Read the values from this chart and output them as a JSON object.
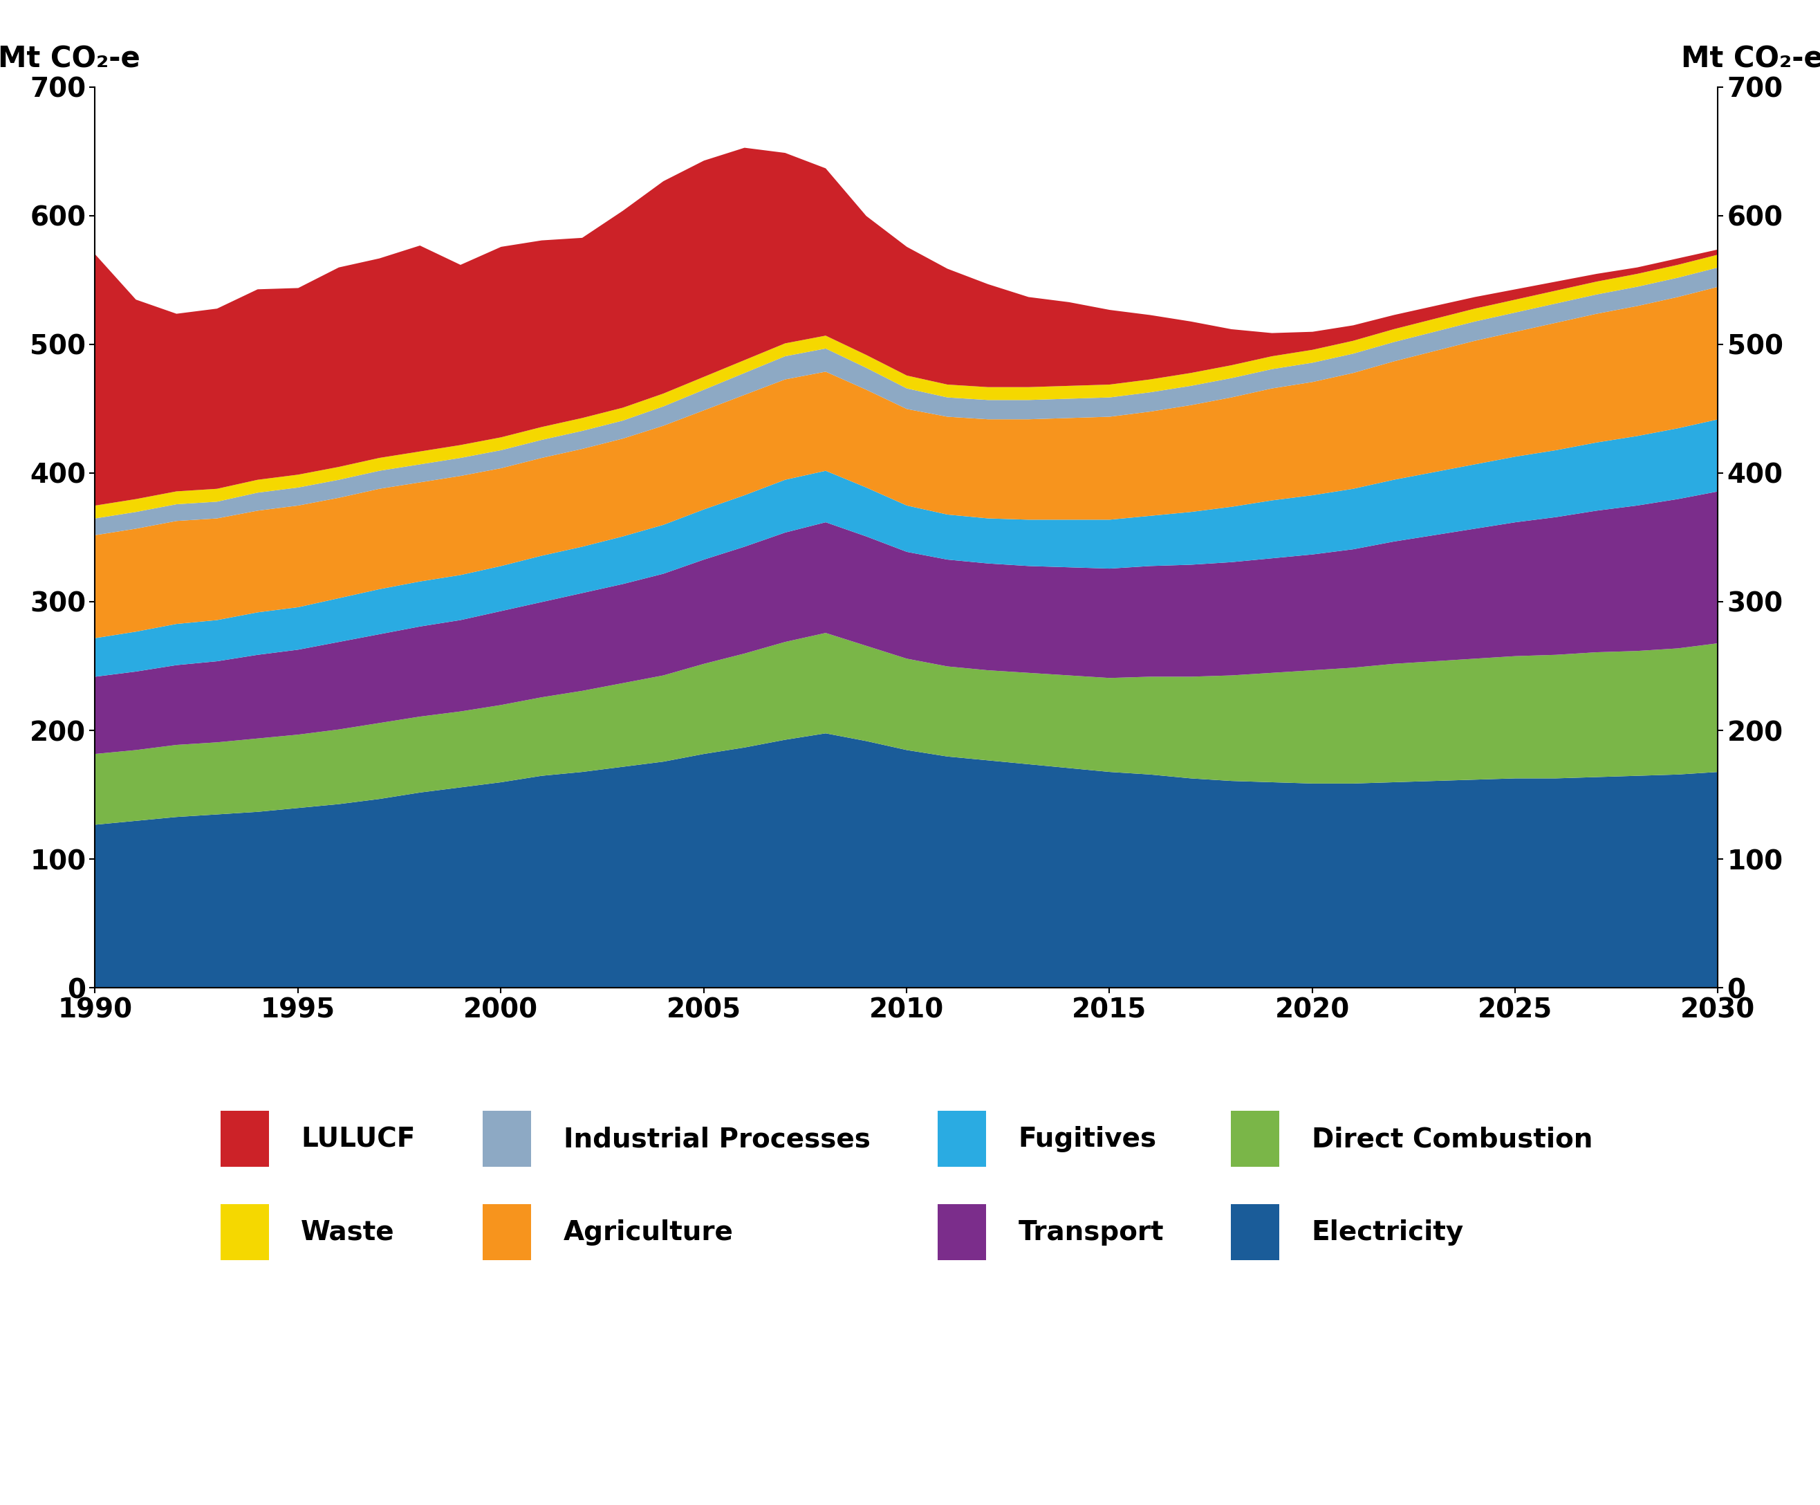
{
  "years": [
    1990,
    1991,
    1992,
    1993,
    1994,
    1995,
    1996,
    1997,
    1998,
    1999,
    2000,
    2001,
    2002,
    2003,
    2004,
    2005,
    2006,
    2007,
    2008,
    2009,
    2010,
    2011,
    2012,
    2013,
    2014,
    2015,
    2016,
    2017,
    2018,
    2019,
    2020,
    2021,
    2022,
    2023,
    2024,
    2025,
    2026,
    2027,
    2028,
    2029,
    2030
  ],
  "electricity": [
    127,
    130,
    133,
    135,
    137,
    140,
    143,
    147,
    152,
    156,
    160,
    165,
    168,
    172,
    176,
    182,
    187,
    193,
    198,
    192,
    185,
    180,
    177,
    174,
    171,
    168,
    166,
    163,
    161,
    160,
    159,
    159,
    160,
    161,
    162,
    163,
    163,
    164,
    165,
    166,
    168
  ],
  "direct_combustion": [
    55,
    55,
    56,
    56,
    57,
    57,
    58,
    59,
    59,
    59,
    60,
    61,
    63,
    65,
    67,
    70,
    73,
    76,
    78,
    74,
    71,
    70,
    70,
    71,
    72,
    73,
    76,
    79,
    82,
    85,
    88,
    90,
    92,
    93,
    94,
    95,
    96,
    97,
    97,
    98,
    100
  ],
  "transport": [
    60,
    61,
    62,
    63,
    65,
    66,
    68,
    69,
    70,
    71,
    73,
    74,
    76,
    77,
    79,
    81,
    83,
    85,
    86,
    85,
    83,
    83,
    83,
    83,
    84,
    85,
    86,
    87,
    88,
    89,
    90,
    92,
    95,
    98,
    101,
    104,
    107,
    110,
    113,
    116,
    118
  ],
  "fugitives": [
    30,
    31,
    32,
    32,
    33,
    33,
    34,
    35,
    35,
    35,
    35,
    36,
    36,
    37,
    38,
    39,
    40,
    41,
    40,
    38,
    36,
    35,
    35,
    36,
    37,
    38,
    39,
    41,
    43,
    45,
    46,
    47,
    48,
    49,
    50,
    51,
    52,
    53,
    54,
    55,
    56
  ],
  "agriculture": [
    80,
    80,
    80,
    79,
    79,
    79,
    78,
    78,
    77,
    77,
    76,
    76,
    76,
    76,
    77,
    77,
    78,
    78,
    77,
    76,
    75,
    76,
    77,
    78,
    79,
    80,
    81,
    83,
    85,
    87,
    88,
    90,
    92,
    94,
    96,
    97,
    99,
    100,
    101,
    102,
    103
  ],
  "industrial_processes": [
    13,
    13,
    13,
    13,
    14,
    14,
    14,
    14,
    14,
    14,
    14,
    14,
    14,
    14,
    15,
    16,
    17,
    18,
    18,
    17,
    16,
    15,
    15,
    15,
    15,
    15,
    15,
    15,
    15,
    15,
    15,
    15,
    15,
    15,
    15,
    15,
    15,
    15,
    15,
    15,
    15
  ],
  "waste": [
    10,
    10,
    10,
    10,
    10,
    10,
    10,
    10,
    10,
    10,
    10,
    10,
    10,
    10,
    10,
    10,
    10,
    10,
    10,
    10,
    10,
    10,
    10,
    10,
    10,
    10,
    10,
    10,
    10,
    10,
    10,
    10,
    10,
    10,
    10,
    10,
    10,
    10,
    10,
    10,
    10
  ],
  "lulucf": [
    195,
    155,
    138,
    140,
    148,
    145,
    155,
    155,
    160,
    140,
    148,
    145,
    140,
    153,
    165,
    168,
    165,
    148,
    130,
    108,
    100,
    90,
    80,
    70,
    65,
    58,
    50,
    40,
    28,
    18,
    14,
    12,
    11,
    10,
    9,
    8,
    7,
    6,
    5,
    5,
    4
  ],
  "colors": {
    "electricity": "#1a5c99",
    "direct_combustion": "#7ab648",
    "transport": "#7b2d8b",
    "fugitives": "#2aabe2",
    "agriculture": "#f7941d",
    "industrial_processes": "#8da9c4",
    "waste": "#f5d800",
    "lulucf": "#cc2228"
  },
  "ylabel_left": "Mt CO₂-e",
  "ylabel_right": "Mt CO₂-e",
  "ylim": [
    0,
    700
  ],
  "yticks": [
    0,
    100,
    200,
    300,
    400,
    500,
    600,
    700
  ],
  "xlim": [
    1990,
    2030
  ],
  "xticks": [
    1990,
    1995,
    2000,
    2005,
    2010,
    2015,
    2020,
    2025,
    2030
  ]
}
